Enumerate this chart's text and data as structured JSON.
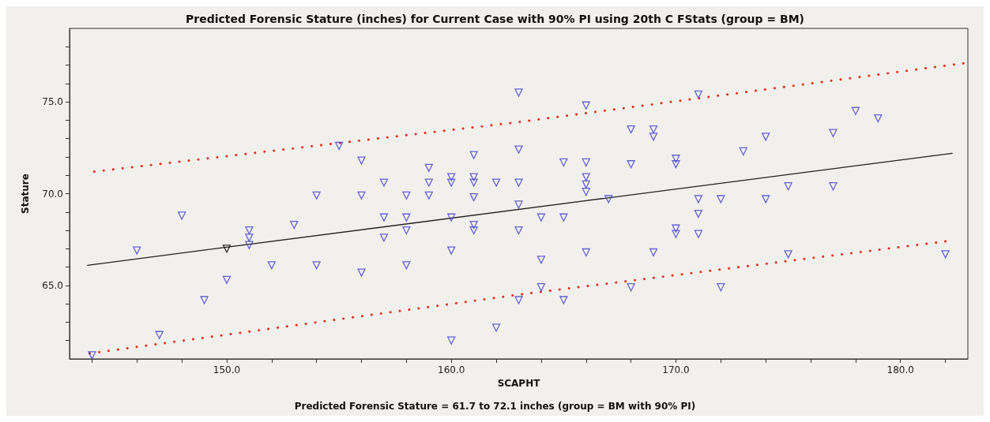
{
  "chart_data": {
    "type": "scatter",
    "title": "Predicted Forensic Stature (inches) for Current Case with 90% PI using 20th C FStats (group = BM)",
    "xlabel": "SCAPHT",
    "ylabel": "Stature",
    "annotations": [
      "Predicted Forensic Stature = 61.7 to 72.1 inches (group = BM with 90% PI)"
    ],
    "xlim": [
      143,
      183
    ],
    "ylim": [
      61,
      79
    ],
    "xticks": [
      {
        "value": 144,
        "label": null
      },
      {
        "value": 146,
        "label": null
      },
      {
        "value": 148,
        "label": null
      },
      {
        "value": 150,
        "label": "150.0"
      },
      {
        "value": 152,
        "label": null
      },
      {
        "value": 154,
        "label": null
      },
      {
        "value": 156,
        "label": null
      },
      {
        "value": 158,
        "label": null
      },
      {
        "value": 160,
        "label": "160.0"
      },
      {
        "value": 162,
        "label": null
      },
      {
        "value": 164,
        "label": null
      },
      {
        "value": 166,
        "label": null
      },
      {
        "value": 168,
        "label": null
      },
      {
        "value": 170,
        "label": "170.0"
      },
      {
        "value": 172,
        "label": null
      },
      {
        "value": 174,
        "label": null
      },
      {
        "value": 176,
        "label": null
      },
      {
        "value": 178,
        "label": null
      },
      {
        "value": 180,
        "label": "180.0"
      },
      {
        "value": 182,
        "label": null
      }
    ],
    "yticks": [
      {
        "value": 62,
        "label": null
      },
      {
        "value": 63,
        "label": null
      },
      {
        "value": 64,
        "label": null
      },
      {
        "value": 65,
        "label": "65.0"
      },
      {
        "value": 66,
        "label": null
      },
      {
        "value": 67,
        "label": null
      },
      {
        "value": 68,
        "label": null
      },
      {
        "value": 69,
        "label": null
      },
      {
        "value": 70,
        "label": "70.0"
      },
      {
        "value": 71,
        "label": null
      },
      {
        "value": 72,
        "label": null
      },
      {
        "value": 73,
        "label": null
      },
      {
        "value": 74,
        "label": null
      },
      {
        "value": 75,
        "label": "75.0"
      },
      {
        "value": 76,
        "label": null
      },
      {
        "value": 77,
        "label": null
      },
      {
        "value": 78,
        "label": null
      }
    ],
    "grid": false,
    "series": [
      {
        "type": "line",
        "color": "#e03020",
        "line_style": "dotted",
        "marker": "none",
        "x": [
          144.1,
          163,
          182.8
        ],
        "values": [
          71.2,
          73.9,
          77.1
        ]
      },
      {
        "type": "line",
        "color": "#e03020",
        "line_style": "dotted",
        "marker": "none",
        "x": [
          143.9,
          163,
          182
        ],
        "values": [
          61.3,
          64.5,
          67.4
        ]
      },
      {
        "type": "line",
        "color": "#202020",
        "line_style": "solid",
        "marker": "none",
        "x": [
          143.8,
          182.3
        ],
        "values": [
          66.1,
          72.2
        ]
      },
      {
        "color": "#4040d0",
        "marker": "triangle",
        "x": [
          144,
          146,
          148,
          147,
          149,
          150,
          151,
          151,
          151,
          152,
          153,
          154,
          154,
          155,
          156,
          156,
          156,
          157,
          157,
          157,
          158,
          158,
          158,
          158,
          159,
          159,
          159,
          160,
          160,
          160,
          160,
          160,
          161,
          161,
          161,
          161,
          161,
          161,
          162,
          162,
          163,
          163,
          163,
          163,
          163,
          163,
          164,
          164,
          164,
          165,
          165,
          165,
          166,
          166,
          166,
          166,
          166,
          166,
          167,
          168,
          168,
          168,
          169,
          169,
          169,
          170,
          170,
          170,
          170,
          171,
          171,
          171,
          171,
          172,
          172,
          173,
          174,
          174,
          175,
          175,
          177,
          177,
          178,
          179,
          182
        ],
        "values": [
          61.2,
          66.9,
          68.8,
          62.3,
          64.2,
          65.3,
          68.0,
          67.6,
          67.2,
          66.1,
          68.3,
          69.9,
          66.1,
          72.6,
          71.8,
          69.9,
          65.7,
          70.6,
          68.7,
          67.6,
          69.9,
          68.7,
          68.0,
          66.1,
          71.4,
          70.6,
          69.9,
          70.9,
          70.6,
          68.7,
          66.9,
          62.0,
          72.1,
          70.9,
          70.6,
          69.8,
          68.3,
          68.0,
          70.6,
          62.7,
          75.5,
          72.4,
          70.6,
          69.4,
          68.0,
          64.2,
          68.7,
          66.4,
          64.9,
          71.7,
          68.7,
          64.2,
          74.8,
          71.7,
          70.9,
          70.5,
          70.1,
          66.8,
          69.7,
          73.5,
          71.6,
          64.9,
          73.5,
          73.1,
          66.8,
          71.9,
          71.6,
          68.1,
          67.8,
          75.4,
          69.7,
          68.9,
          67.8,
          64.9,
          69.7,
          72.3,
          73.1,
          69.7,
          66.7,
          70.4,
          73.3,
          70.4,
          74.5,
          74.1,
          66.7
        ]
      },
      {
        "color": "#000000",
        "marker": "triangle",
        "x": [
          150
        ],
        "values": [
          67.0
        ]
      }
    ]
  }
}
